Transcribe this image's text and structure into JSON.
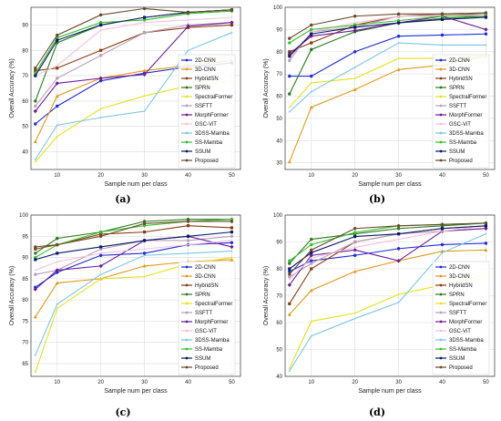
{
  "colors": {
    "2D-CNN": "#1f2bd6",
    "3D-CNN": "#e09a1a",
    "HybridSN": "#8b3a0e",
    "SPRN": "#2a7a1a",
    "SpectralFormer": "#e6e21a",
    "SSFTT": "#b8a0b8",
    "MorphFormer": "#6a1a9a",
    "GSC-ViT": "#f6c2da",
    "3DSS-Mamba": "#79c6ea",
    "SS-Mamba": "#34c02a",
    "SSUM": "#0a1a6a",
    "Proposed": "#6a4a2a"
  },
  "chart_data": [
    {
      "type": "line",
      "caption": "(a)",
      "xlabel": "Sample num per class",
      "ylabel": "Overall Accuracy (%)",
      "x": [
        5,
        10,
        20,
        30,
        40,
        50
      ],
      "xticks": [
        10,
        20,
        30,
        40,
        50
      ],
      "xlim": [
        4,
        52
      ],
      "ylim": [
        33,
        97
      ],
      "yticks": [
        40,
        50,
        60,
        70,
        80,
        90
      ],
      "legend_position": "bottom-right",
      "series": [
        {
          "name": "2D-CNN",
          "values": [
            51,
            58,
            68,
            71,
            73.5,
            75
          ]
        },
        {
          "name": "3D-CNN",
          "values": [
            44,
            62,
            69,
            72,
            74,
            76
          ]
        },
        {
          "name": "HybridSN",
          "values": [
            72,
            73,
            80,
            87,
            89,
            90
          ]
        },
        {
          "name": "SPRN",
          "values": [
            60,
            83,
            90,
            93,
            95,
            96
          ]
        },
        {
          "name": "SpectralFormer",
          "values": [
            36,
            46,
            57,
            62,
            66,
            68
          ]
        },
        {
          "name": "SSFTT",
          "values": [
            58,
            69,
            78,
            87,
            90,
            91
          ]
        },
        {
          "name": "MorphFormer",
          "values": [
            56,
            67,
            69,
            70.5,
            89.5,
            91
          ]
        },
        {
          "name": "GSC-ViT",
          "values": [
            70,
            74,
            88,
            91,
            92,
            93
          ]
        },
        {
          "name": "3DSS-Mamba",
          "values": [
            37,
            50.5,
            53.5,
            56,
            80,
            87
          ]
        },
        {
          "name": "SS-Mamba",
          "values": [
            71,
            85,
            91,
            92,
            94.5,
            95.5
          ]
        },
        {
          "name": "SSUM",
          "values": [
            70,
            84,
            90,
            93,
            95,
            96
          ]
        },
        {
          "name": "Proposed",
          "values": [
            73,
            86,
            94,
            96.5,
            95,
            96
          ]
        }
      ]
    },
    {
      "type": "line",
      "caption": "(b)",
      "xlabel": "Sample num per class",
      "ylabel": "Overall Accuracy (%)",
      "x": [
        5,
        10,
        20,
        30,
        40,
        50
      ],
      "xticks": [
        10,
        20,
        30,
        40,
        50
      ],
      "xlim": [
        4,
        52
      ],
      "ylim": [
        27,
        100
      ],
      "yticks": [
        30,
        40,
        50,
        60,
        70,
        80,
        90,
        100
      ],
      "legend_position": "bottom-right",
      "series": [
        {
          "name": "2D-CNN",
          "values": [
            69,
            69,
            80,
            87,
            87.5,
            88
          ]
        },
        {
          "name": "3D-CNN",
          "values": [
            30.5,
            55,
            63,
            72,
            74,
            78
          ]
        },
        {
          "name": "HybridSN",
          "values": [
            80,
            84,
            92,
            96,
            97,
            97
          ]
        },
        {
          "name": "SPRN",
          "values": [
            61,
            81,
            89,
            93,
            95,
            96
          ]
        },
        {
          "name": "SpectralFormer",
          "values": [
            55,
            66,
            68,
            77,
            77,
            78
          ]
        },
        {
          "name": "SSFTT",
          "values": [
            76,
            89,
            91,
            96,
            96,
            97
          ]
        },
        {
          "name": "MorphFormer",
          "values": [
            79,
            87,
            89.5,
            93,
            96,
            90
          ]
        },
        {
          "name": "GSC-ViT",
          "values": [
            77,
            89,
            93,
            96,
            96.5,
            96
          ]
        },
        {
          "name": "3DSS-Mamba",
          "values": [
            53,
            62,
            73,
            84,
            83,
            83
          ]
        },
        {
          "name": "SS-Mamba",
          "values": [
            84,
            90,
            92,
            94,
            96,
            96
          ]
        },
        {
          "name": "SSUM",
          "values": [
            78,
            88,
            91,
            93,
            94.5,
            95.5
          ]
        },
        {
          "name": "Proposed",
          "values": [
            86,
            92,
            96,
            97,
            97,
            97.5
          ]
        }
      ]
    },
    {
      "type": "line",
      "caption": "(c)",
      "xlabel": "Sample num per class",
      "ylabel": "Overall Accuracy (%)",
      "x": [
        5,
        10,
        20,
        30,
        40,
        50
      ],
      "xticks": [
        10,
        20,
        30,
        40,
        50
      ],
      "xlim": [
        4,
        52
      ],
      "ylim": [
        62,
        100
      ],
      "yticks": [
        65,
        70,
        75,
        80,
        85,
        90,
        95,
        100
      ],
      "legend_position": "bottom-right",
      "series": [
        {
          "name": "2D-CNN",
          "values": [
            83,
            86.5,
            90.5,
            91,
            93,
            93.5
          ]
        },
        {
          "name": "3D-CNN",
          "values": [
            76,
            84,
            85,
            88,
            89,
            89.5
          ]
        },
        {
          "name": "HybridSN",
          "values": [
            92,
            93,
            95.5,
            96,
            97.5,
            97
          ]
        },
        {
          "name": "SPRN",
          "values": [
            91,
            94.5,
            96,
            98.5,
            99,
            99
          ]
        },
        {
          "name": "SpectralFormer",
          "values": [
            63,
            78,
            85,
            85.5,
            88.5,
            90
          ]
        },
        {
          "name": "SSFTT",
          "values": [
            86,
            87,
            92,
            94,
            94,
            95
          ]
        },
        {
          "name": "MorphFormer",
          "values": [
            82.5,
            87,
            88,
            94,
            95,
            92.5
          ]
        },
        {
          "name": "GSC-ViT",
          "values": [
            87,
            89,
            91,
            92,
            93,
            94
          ]
        },
        {
          "name": "3DSS-Mamba",
          "values": [
            67,
            79,
            86,
            90.5,
            91,
            91.5
          ]
        },
        {
          "name": "SS-Mamba",
          "values": [
            90,
            93,
            96,
            97.5,
            98.5,
            99
          ]
        },
        {
          "name": "SSUM",
          "values": [
            89.5,
            91,
            92.5,
            94,
            95,
            96
          ]
        },
        {
          "name": "Proposed",
          "values": [
            92.5,
            93,
            95,
            98,
            98.5,
            98.5
          ]
        }
      ]
    },
    {
      "type": "line",
      "caption": "(d)",
      "xlabel": "Sample num per class",
      "ylabel": "Overall Accuracy (%)",
      "x": [
        5,
        10,
        20,
        30,
        40,
        50
      ],
      "xticks": [
        10,
        20,
        30,
        40,
        50
      ],
      "xlim": [
        4,
        52
      ],
      "ylim": [
        40,
        100
      ],
      "yticks": [
        40,
        50,
        60,
        70,
        80,
        90,
        100
      ],
      "legend_position": "bottom-right",
      "series": [
        {
          "name": "2D-CNN",
          "values": [
            79,
            83,
            85,
            87.5,
            89,
            89.5
          ]
        },
        {
          "name": "3D-CNN",
          "values": [
            63,
            72,
            79,
            83,
            86.5,
            87
          ]
        },
        {
          "name": "HybridSN",
          "values": [
            67,
            80,
            90,
            93,
            95,
            96
          ]
        },
        {
          "name": "SPRN",
          "values": [
            82,
            91,
            93,
            95,
            96,
            97
          ]
        },
        {
          "name": "SpectralFormer",
          "values": [
            43,
            60.5,
            63.5,
            70.5,
            74,
            78
          ]
        },
        {
          "name": "SSFTT",
          "values": [
            77,
            82,
            90,
            93,
            94,
            95
          ]
        },
        {
          "name": "MorphFormer",
          "values": [
            74,
            85,
            87,
            83,
            94,
            95
          ]
        },
        {
          "name": "GSC-ViT",
          "values": [
            76,
            84,
            88,
            91,
            94,
            96
          ]
        },
        {
          "name": "3DSS-Mamba",
          "values": [
            42,
            55,
            61.5,
            67.5,
            86,
            93
          ]
        },
        {
          "name": "SS-Mamba",
          "values": [
            83,
            89,
            93.5,
            96,
            96.5,
            97
          ]
        },
        {
          "name": "SSUM",
          "values": [
            80,
            86,
            92,
            93,
            95,
            96
          ]
        },
        {
          "name": "Proposed",
          "values": [
            78,
            87,
            95,
            96,
            96.5,
            97
          ]
        }
      ]
    }
  ]
}
